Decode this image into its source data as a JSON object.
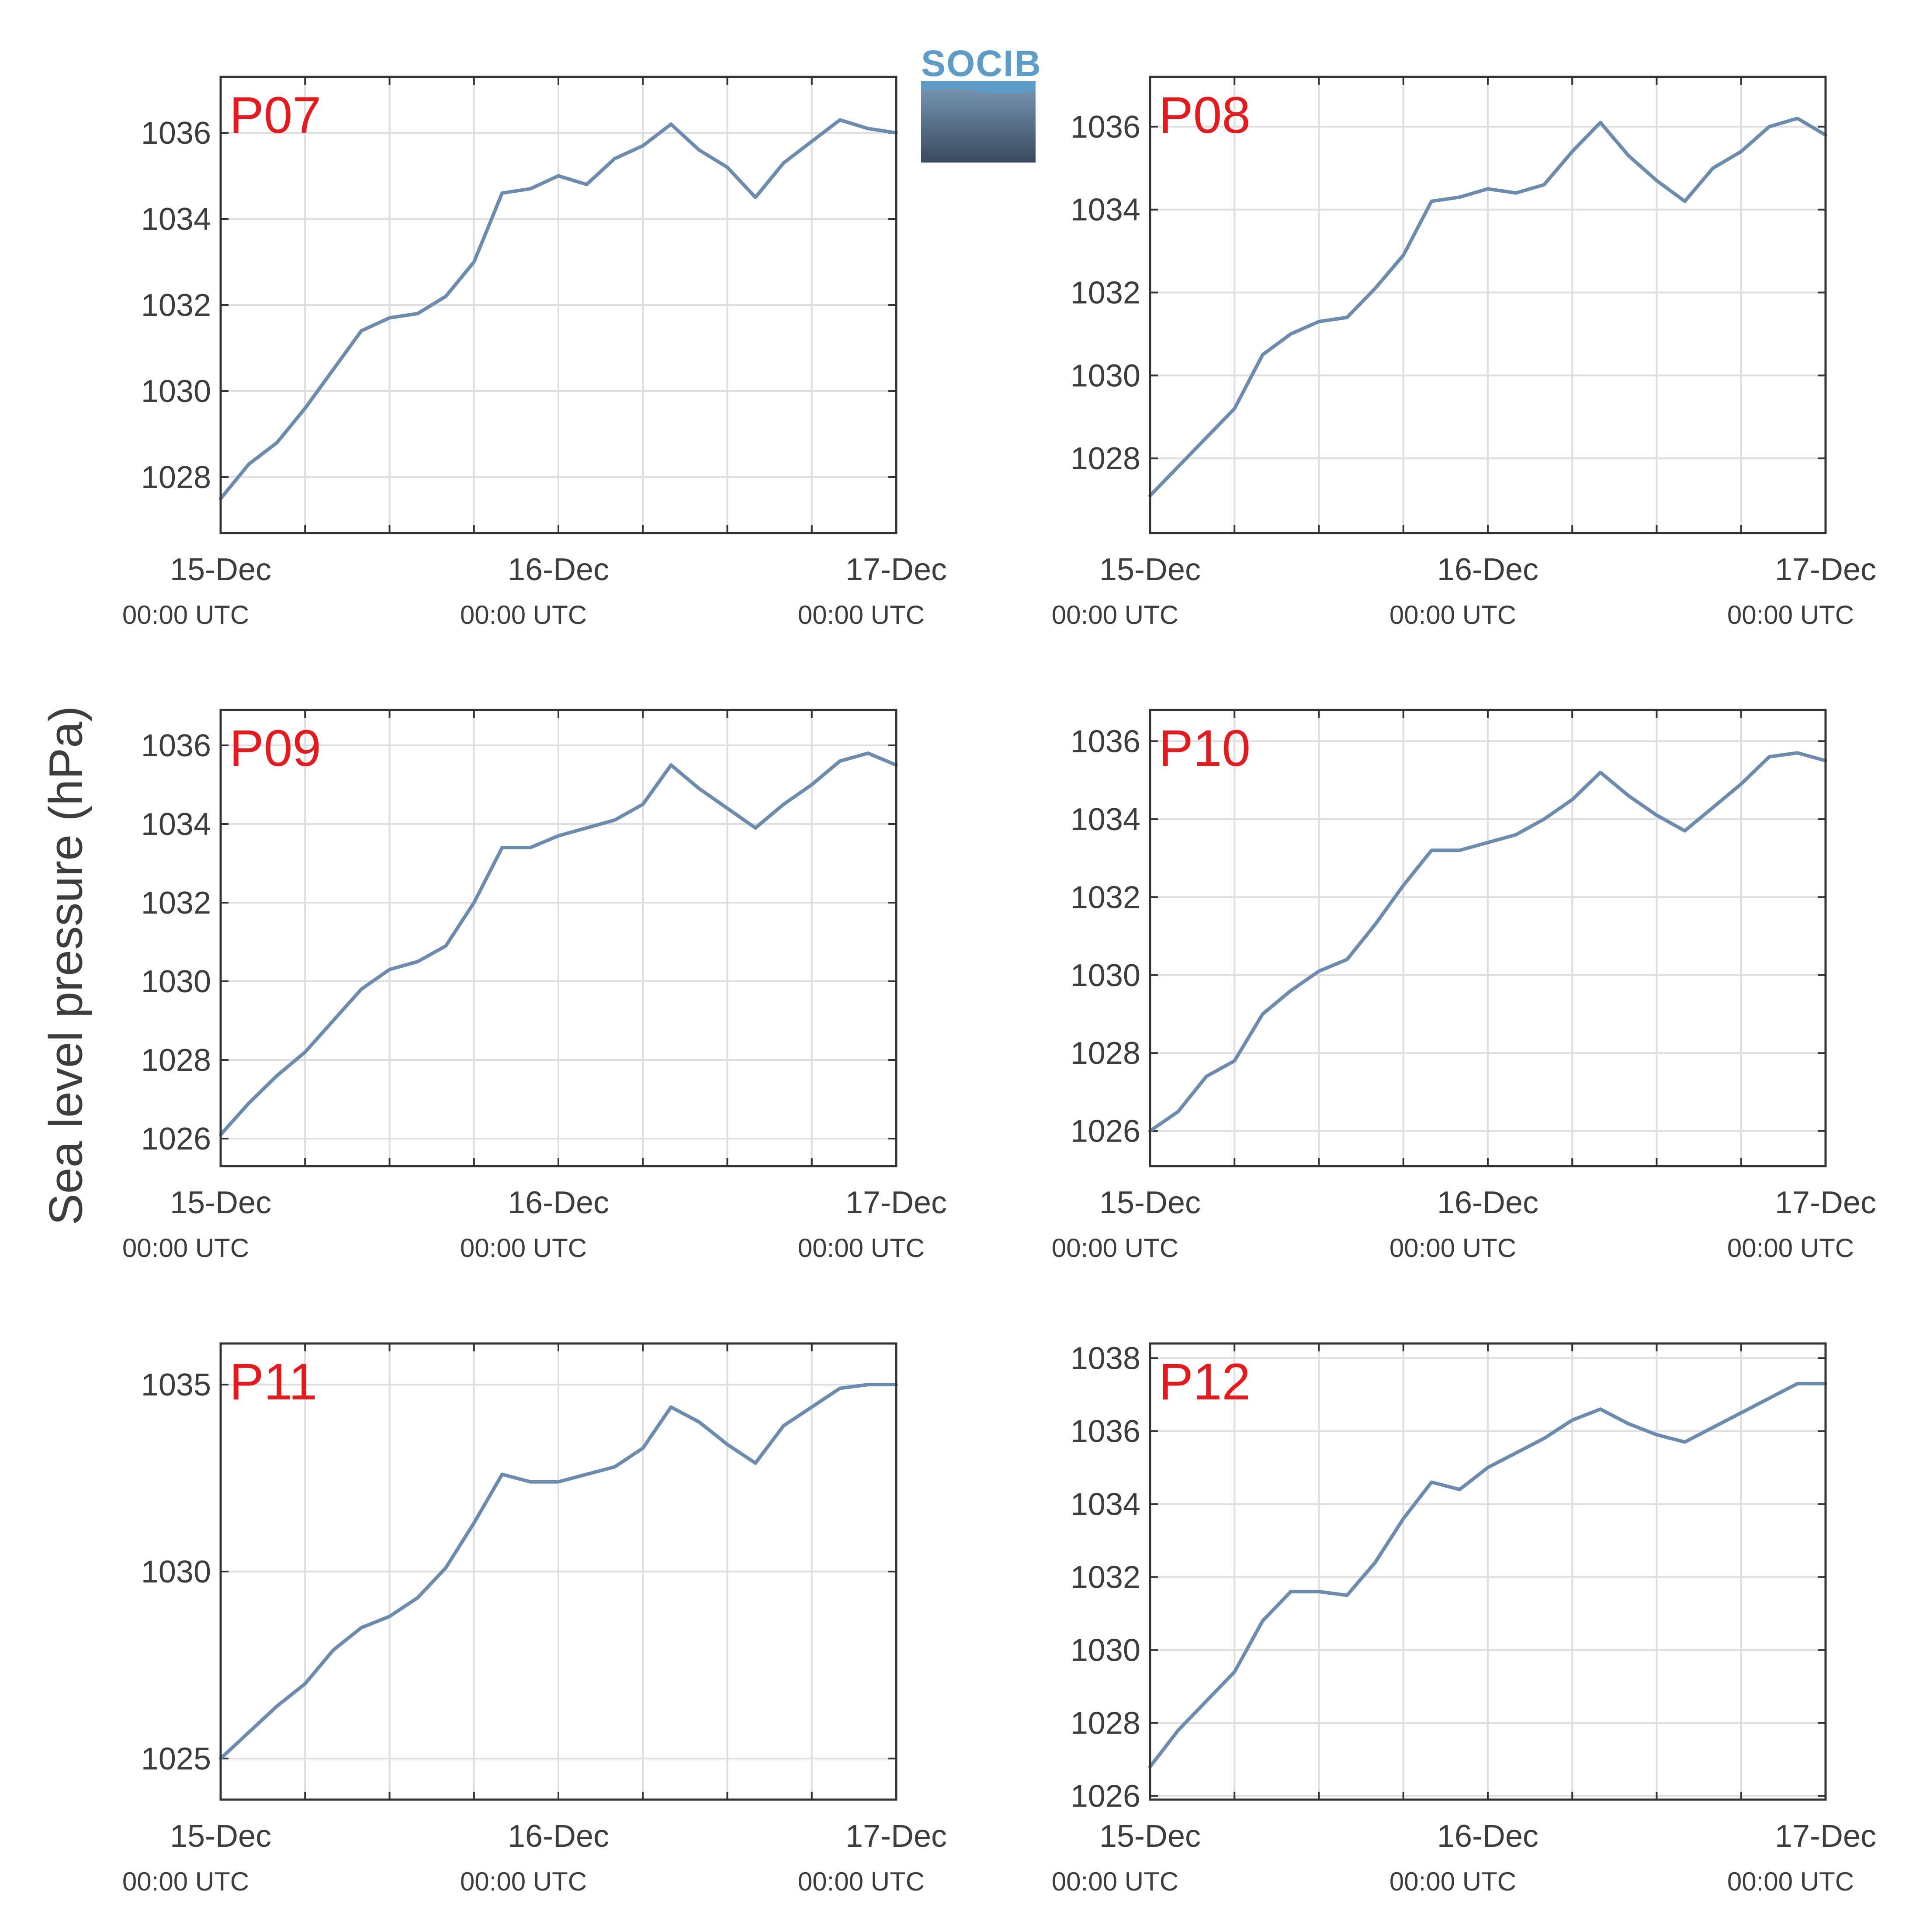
{
  "figure": {
    "ylabel": "Sea level pressure (hPa)",
    "logo_text": "SOCIB"
  },
  "style": {
    "line_color": "#6b8cae",
    "label_color": "#e41a1c",
    "grid_color": "#dedede",
    "axis_color": "#333333",
    "text_color": "#3d3d3d"
  },
  "chart_data": [
    {
      "type": "line",
      "label": "P07",
      "xlim": [
        "15-Dec 00:00 UTC",
        "17-Dec 00:00 UTC"
      ],
      "ylim": [
        1026.7,
        1037.3
      ],
      "yticks": [
        1028,
        1030,
        1032,
        1034,
        1036
      ],
      "xticks": [
        {
          "day": "15-Dec",
          "time": "00:00 UTC"
        },
        {
          "day": "16-Dec",
          "time": "00:00 UTC"
        },
        {
          "day": "17-Dec",
          "time": "00:00 UTC"
        }
      ],
      "x_hours": [
        0,
        2,
        4,
        6,
        8,
        10,
        12,
        14,
        16,
        18,
        20,
        22,
        24,
        26,
        28,
        30,
        32,
        34,
        36,
        38,
        40,
        42,
        44,
        46,
        48
      ],
      "values": [
        1027.5,
        1028.3,
        1028.8,
        1029.6,
        1030.5,
        1031.4,
        1031.7,
        1031.8,
        1032.2,
        1033.0,
        1034.6,
        1034.7,
        1035.0,
        1034.8,
        1035.4,
        1035.7,
        1036.2,
        1035.6,
        1035.2,
        1034.5,
        1035.3,
        1035.8,
        1036.3,
        1036.1,
        1036.0
      ],
      "grid": true
    },
    {
      "type": "line",
      "label": "P08",
      "xlim": [
        "15-Dec 00:00 UTC",
        "17-Dec 00:00 UTC"
      ],
      "ylim": [
        1026.2,
        1037.2
      ],
      "yticks": [
        1028,
        1030,
        1032,
        1034,
        1036
      ],
      "xticks": [
        {
          "day": "15-Dec",
          "time": "00:00 UTC"
        },
        {
          "day": "16-Dec",
          "time": "00:00 UTC"
        },
        {
          "day": "17-Dec",
          "time": "00:00 UTC"
        }
      ],
      "x_hours": [
        0,
        2,
        4,
        6,
        8,
        10,
        12,
        14,
        16,
        18,
        20,
        22,
        24,
        26,
        28,
        30,
        32,
        34,
        36,
        38,
        40,
        42,
        44,
        46,
        48
      ],
      "values": [
        1027.1,
        1027.8,
        1028.5,
        1029.2,
        1030.5,
        1031.0,
        1031.3,
        1031.4,
        1032.1,
        1032.9,
        1034.2,
        1034.3,
        1034.5,
        1034.4,
        1034.6,
        1035.4,
        1036.1,
        1035.3,
        1034.7,
        1034.2,
        1035.0,
        1035.4,
        1036.0,
        1036.2,
        1035.8
      ],
      "grid": true
    },
    {
      "type": "line",
      "label": "P09",
      "xlim": [
        "15-Dec 00:00 UTC",
        "17-Dec 00:00 UTC"
      ],
      "ylim": [
        1025.3,
        1036.9
      ],
      "yticks": [
        1026,
        1028,
        1030,
        1032,
        1034,
        1036
      ],
      "xticks": [
        {
          "day": "15-Dec",
          "time": "00:00 UTC"
        },
        {
          "day": "16-Dec",
          "time": "00:00 UTC"
        },
        {
          "day": "17-Dec",
          "time": "00:00 UTC"
        }
      ],
      "x_hours": [
        0,
        2,
        4,
        6,
        8,
        10,
        12,
        14,
        16,
        18,
        20,
        22,
        24,
        26,
        28,
        30,
        32,
        34,
        36,
        38,
        40,
        42,
        44,
        46,
        48
      ],
      "values": [
        1026.1,
        1026.9,
        1027.6,
        1028.2,
        1029.0,
        1029.8,
        1030.3,
        1030.5,
        1030.9,
        1032.0,
        1033.4,
        1033.4,
        1033.7,
        1033.9,
        1034.1,
        1034.5,
        1035.5,
        1034.9,
        1034.4,
        1033.9,
        1034.5,
        1035.0,
        1035.6,
        1035.8,
        1035.5
      ],
      "grid": true
    },
    {
      "type": "line",
      "label": "P10",
      "xlim": [
        "15-Dec 00:00 UTC",
        "17-Dec 00:00 UTC"
      ],
      "ylim": [
        1025.1,
        1036.8
      ],
      "yticks": [
        1026,
        1028,
        1030,
        1032,
        1034,
        1036
      ],
      "xticks": [
        {
          "day": "15-Dec",
          "time": "00:00 UTC"
        },
        {
          "day": "16-Dec",
          "time": "00:00 UTC"
        },
        {
          "day": "17-Dec",
          "time": "00:00 UTC"
        }
      ],
      "x_hours": [
        0,
        2,
        4,
        6,
        8,
        10,
        12,
        14,
        16,
        18,
        20,
        22,
        24,
        26,
        28,
        30,
        32,
        34,
        36,
        38,
        40,
        42,
        44,
        46,
        48
      ],
      "values": [
        1026.0,
        1026.5,
        1027.4,
        1027.8,
        1029.0,
        1029.6,
        1030.1,
        1030.4,
        1031.3,
        1032.3,
        1033.2,
        1033.2,
        1033.4,
        1033.6,
        1034.0,
        1034.5,
        1035.2,
        1034.6,
        1034.1,
        1033.7,
        1034.3,
        1034.9,
        1035.6,
        1035.7,
        1035.5
      ],
      "grid": true
    },
    {
      "type": "line",
      "label": "P11",
      "xlim": [
        "15-Dec 00:00 UTC",
        "17-Dec 00:00 UTC"
      ],
      "ylim": [
        1023.9,
        1036.1
      ],
      "yticks": [
        1025,
        1030,
        1035
      ],
      "xticks": [
        {
          "day": "15-Dec",
          "time": "00:00 UTC"
        },
        {
          "day": "16-Dec",
          "time": "00:00 UTC"
        },
        {
          "day": "17-Dec",
          "time": "00:00 UTC"
        }
      ],
      "x_hours": [
        0,
        2,
        4,
        6,
        8,
        10,
        12,
        14,
        16,
        18,
        20,
        22,
        24,
        26,
        28,
        30,
        32,
        34,
        36,
        38,
        40,
        42,
        44,
        46,
        48
      ],
      "values": [
        1025.0,
        1025.7,
        1026.4,
        1027.0,
        1027.9,
        1028.5,
        1028.8,
        1029.3,
        1030.1,
        1031.3,
        1032.6,
        1032.4,
        1032.4,
        1032.6,
        1032.8,
        1033.3,
        1034.4,
        1034.0,
        1033.4,
        1032.9,
        1033.9,
        1034.4,
        1034.9,
        1035.0,
        1035.0
      ],
      "grid": true
    },
    {
      "type": "line",
      "label": "P12",
      "xlim": [
        "15-Dec 00:00 UTC",
        "17-Dec 00:00 UTC"
      ],
      "ylim": [
        1025.9,
        1038.4
      ],
      "yticks": [
        1026,
        1028,
        1030,
        1032,
        1034,
        1036,
        1038
      ],
      "xticks": [
        {
          "day": "15-Dec",
          "time": "00:00 UTC"
        },
        {
          "day": "16-Dec",
          "time": "00:00 UTC"
        },
        {
          "day": "17-Dec",
          "time": "00:00 UTC"
        }
      ],
      "x_hours": [
        0,
        2,
        4,
        6,
        8,
        10,
        12,
        14,
        16,
        18,
        20,
        22,
        24,
        26,
        28,
        30,
        32,
        34,
        36,
        38,
        40,
        42,
        44,
        46,
        48
      ],
      "values": [
        1026.8,
        1027.8,
        1028.6,
        1029.4,
        1030.8,
        1031.6,
        1031.6,
        1031.5,
        1032.4,
        1033.6,
        1034.6,
        1034.4,
        1035.0,
        1035.4,
        1035.8,
        1036.3,
        1036.6,
        1036.2,
        1035.9,
        1035.7,
        1036.1,
        1036.5,
        1036.9,
        1037.3,
        1037.3
      ],
      "grid": true
    }
  ]
}
